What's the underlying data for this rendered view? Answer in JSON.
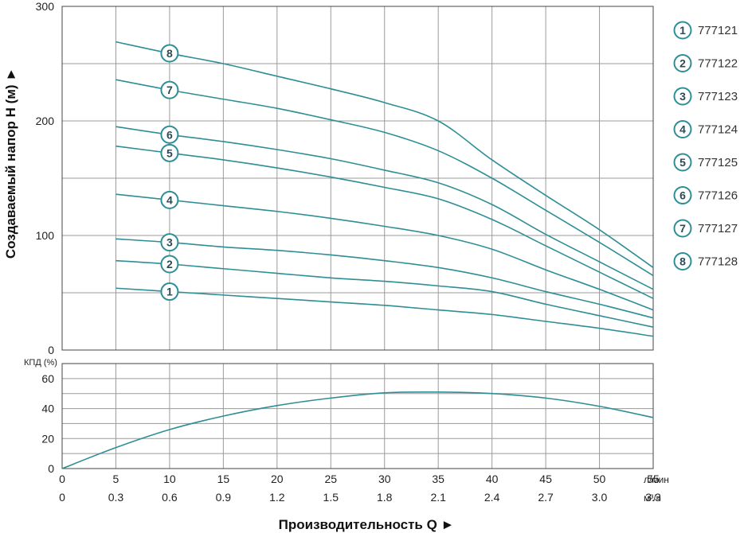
{
  "chart_data": [
    {
      "type": "line",
      "ylabel": "Создаваемый напор H (м) ►",
      "x": [
        5,
        10,
        15,
        20,
        25,
        30,
        35,
        40,
        45,
        50,
        55
      ],
      "xlim": [
        0,
        55
      ],
      "ylim": [
        0,
        300
      ],
      "yticks": [
        "0",
        "100",
        "200",
        "300"
      ],
      "grid": true,
      "series": [
        {
          "name": "777121",
          "marker": "1",
          "values": [
            54,
            51,
            48,
            45,
            42,
            39,
            35,
            31,
            25,
            19,
            12
          ]
        },
        {
          "name": "777122",
          "marker": "2",
          "values": [
            78,
            75,
            71,
            67,
            63,
            60,
            56,
            51,
            40,
            30,
            20
          ]
        },
        {
          "name": "777123",
          "marker": "3",
          "values": [
            97,
            94,
            90,
            87,
            83,
            78,
            72,
            63,
            51,
            40,
            28
          ]
        },
        {
          "name": "777124",
          "marker": "4",
          "values": [
            136,
            131,
            126,
            121,
            115,
            108,
            100,
            88,
            70,
            53,
            35
          ]
        },
        {
          "name": "777125",
          "marker": "5",
          "values": [
            178,
            172,
            166,
            159,
            151,
            142,
            132,
            114,
            91,
            68,
            45
          ]
        },
        {
          "name": "777126",
          "marker": "6",
          "values": [
            195,
            188,
            182,
            175,
            167,
            157,
            146,
            127,
            101,
            77,
            53
          ]
        },
        {
          "name": "777127",
          "marker": "7",
          "values": [
            236,
            227,
            219,
            211,
            201,
            190,
            174,
            150,
            122,
            94,
            65
          ]
        },
        {
          "name": "777128",
          "marker": "8",
          "values": [
            269,
            259,
            250,
            239,
            228,
            216,
            200,
            166,
            135,
            105,
            72
          ]
        }
      ],
      "legend_position": "right"
    },
    {
      "type": "line",
      "ylabel": "КПД (%)",
      "x": [
        0,
        5,
        10,
        15,
        20,
        25,
        30,
        35,
        40,
        45,
        50,
        55
      ],
      "xlim": [
        0,
        55
      ],
      "ylim": [
        0,
        70
      ],
      "yticks": [
        "0",
        "20",
        "40",
        "60"
      ],
      "grid": true,
      "series": [
        {
          "values": [
            0,
            14,
            26,
            35,
            42,
            47,
            50.5,
            51,
            50,
            47,
            41.5,
            34
          ]
        }
      ]
    }
  ],
  "x_axis": {
    "ticks_lmin": [
      "0",
      "5",
      "10",
      "15",
      "20",
      "25",
      "30",
      "35",
      "40",
      "45",
      "50",
      "55"
    ],
    "unit_lmin": "л/мин",
    "ticks_m3h": [
      "0",
      "0.3",
      "0.6",
      "0.9",
      "1.2",
      "1.5",
      "1.8",
      "2.1",
      "2.4",
      "2.7",
      "3.0",
      "3.3"
    ],
    "unit_m3h": "м³/ч",
    "title": "Производительность Q ►"
  },
  "colors": {
    "curve": "#2e8e96",
    "grid": "#9a9a9a",
    "frame": "#444444",
    "marker_border": "#2e8e96"
  }
}
